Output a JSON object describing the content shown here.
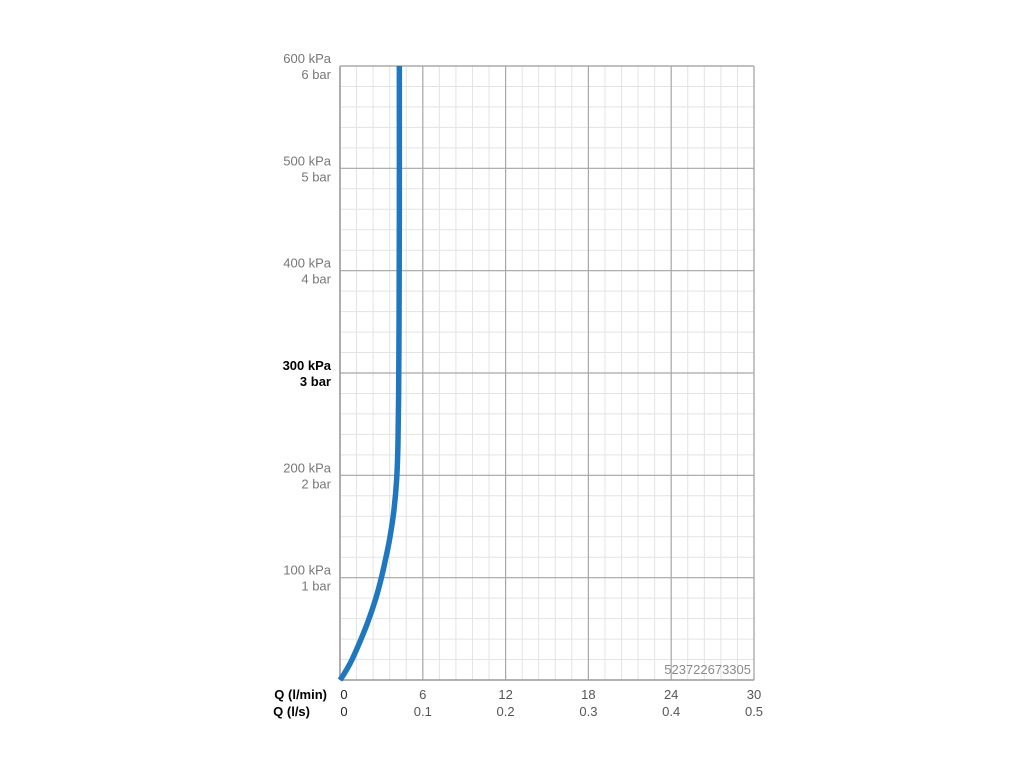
{
  "chart_data": {
    "type": "line",
    "y_axis": {
      "unit_primary": "kPa",
      "unit_secondary": "bar",
      "ylim": [
        0,
        600
      ],
      "ticks": [
        {
          "value": 600,
          "label_kpa": "600 kPa",
          "label_bar": "6 bar"
        },
        {
          "value": 500,
          "label_kpa": "500 kPa",
          "label_bar": "5 bar"
        },
        {
          "value": 400,
          "label_kpa": "400 kPa",
          "label_bar": "4 bar"
        },
        {
          "value": 300,
          "label_kpa": "300 kPa",
          "label_bar": "3 bar",
          "bold": true
        },
        {
          "value": 200,
          "label_kpa": "200 kPa",
          "label_bar": "2 bar"
        },
        {
          "value": 100,
          "label_kpa": "100 kPa",
          "label_bar": "1 bar"
        }
      ]
    },
    "x_axis": {
      "label_primary": "Q (l/min)",
      "label_secondary": "Q (l/s)",
      "xlim": [
        0,
        30
      ],
      "ticks": [
        {
          "value": 0,
          "label_lmin": "0",
          "label_ls": "0"
        },
        {
          "value": 6,
          "label_lmin": "6",
          "label_ls": "0.1"
        },
        {
          "value": 12,
          "label_lmin": "12",
          "label_ls": "0.2"
        },
        {
          "value": 18,
          "label_lmin": "18",
          "label_ls": "0.3"
        },
        {
          "value": 24,
          "label_lmin": "24",
          "label_ls": "0.4"
        },
        {
          "value": 30,
          "label_lmin": "30",
          "label_ls": "0.5"
        }
      ],
      "minor_step": 1.2
    },
    "y_minor_step": 20,
    "grid": true,
    "series": [
      {
        "color": "#1f77c0",
        "x": [
          0,
          0.3,
          0.8,
          1.4,
          2.0,
          2.6,
          3.0,
          3.3,
          3.6,
          3.9,
          4.1,
          4.2,
          4.25,
          4.28,
          4.3,
          4.3
        ],
        "y": [
          0,
          6,
          18,
          36,
          56,
          80,
          100,
          118,
          138,
          165,
          195,
          230,
          280,
          350,
          450,
          600
        ]
      }
    ],
    "annotation": "523722673305"
  }
}
